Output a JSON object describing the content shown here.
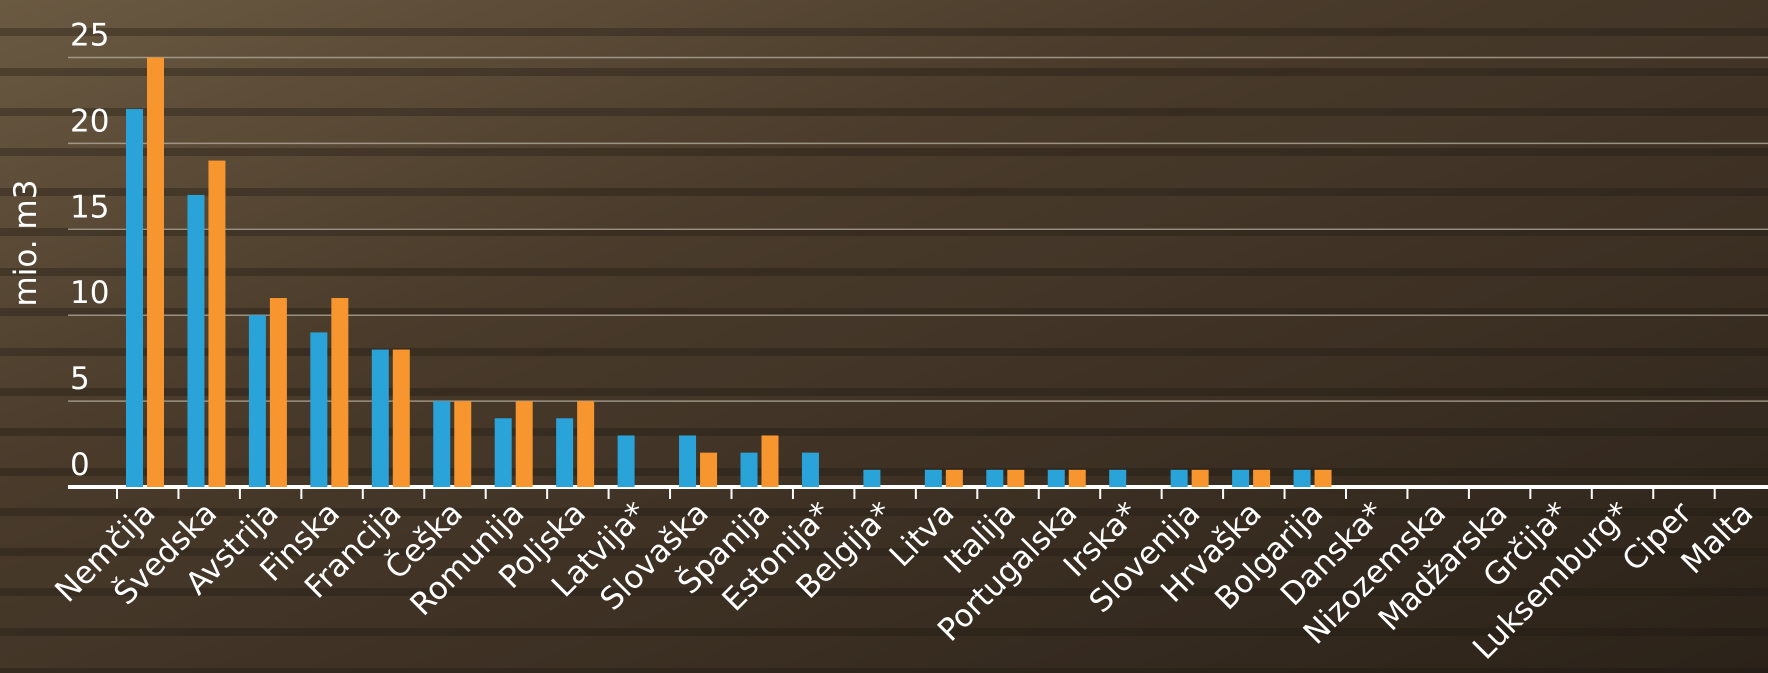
{
  "chart_data": {
    "type": "bar",
    "y_label": "mio. m3",
    "categories": [
      "Nemčija",
      "Švedska",
      "Avstrija",
      "Finska",
      "Francija",
      "Češka",
      "Romunija",
      "Poljska",
      "Latvija*",
      "Slovaška",
      "Španija",
      "Estonija*",
      "Belgija*",
      "Litva",
      "Italija",
      "Portugalska",
      "Irska*",
      "Slovenija",
      "Hrvaška",
      "Bolgarija",
      "Danska*",
      "Nizozemska",
      "Madžarska",
      "Grčija*",
      "Luksemburg*",
      "Ciper",
      "Malta"
    ],
    "series": [
      {
        "color": "#2aa3d8",
        "values": [
          22,
          17,
          10,
          9,
          8,
          5,
          4,
          4,
          3,
          3,
          2,
          2,
          1,
          1,
          1,
          1,
          1,
          1,
          1,
          1,
          0,
          0,
          0,
          0,
          0,
          0,
          0
        ]
      },
      {
        "color": "#f7952e",
        "values": [
          25,
          19,
          11,
          11,
          8,
          5,
          5,
          5,
          0,
          2,
          3,
          0,
          0,
          1,
          1,
          1,
          0,
          1,
          1,
          1,
          0,
          0,
          0,
          0,
          0,
          0,
          0
        ]
      }
    ],
    "ylim": [
      0,
      25
    ],
    "yticks": [
      0,
      5,
      10,
      15,
      20,
      25
    ],
    "grid": true
  }
}
